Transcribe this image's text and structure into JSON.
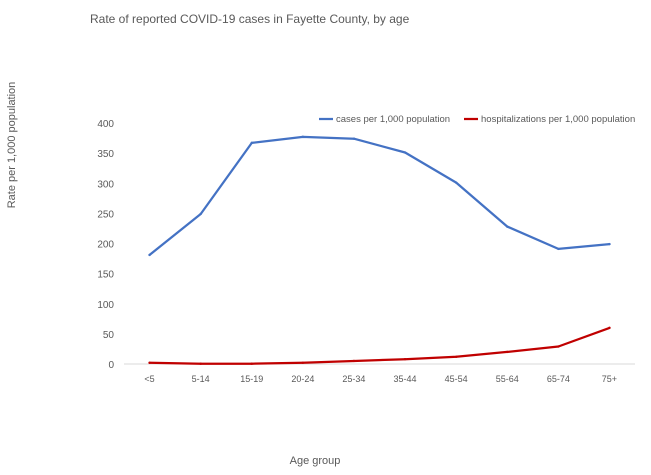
{
  "chart_data": {
    "type": "line",
    "title": "Rate of reported COVID-19 cases in Fayette County, by age",
    "xlabel": "Age group",
    "ylabel": "Rate per 1,000 population",
    "categories": [
      "<5",
      "5-14",
      "15-19",
      "20-24",
      "25-34",
      "35-44",
      "45-54",
      "55-64",
      "65-74",
      "75+"
    ],
    "ylim": [
      0,
      400
    ],
    "yticks": [
      0,
      50,
      100,
      150,
      200,
      250,
      300,
      350,
      400
    ],
    "grid": false,
    "legend": "top-right",
    "series": [
      {
        "name": "cases per 1,000 population",
        "color": "#4472C4",
        "values": [
          181,
          249,
          367,
          377,
          374,
          351,
          301,
          228,
          191,
          199
        ]
      },
      {
        "name": "hospitalizations per 1,000 population",
        "color": "#C00000",
        "values": [
          2,
          0.5,
          0.5,
          2,
          5,
          8,
          12,
          20,
          29,
          60
        ]
      }
    ]
  }
}
